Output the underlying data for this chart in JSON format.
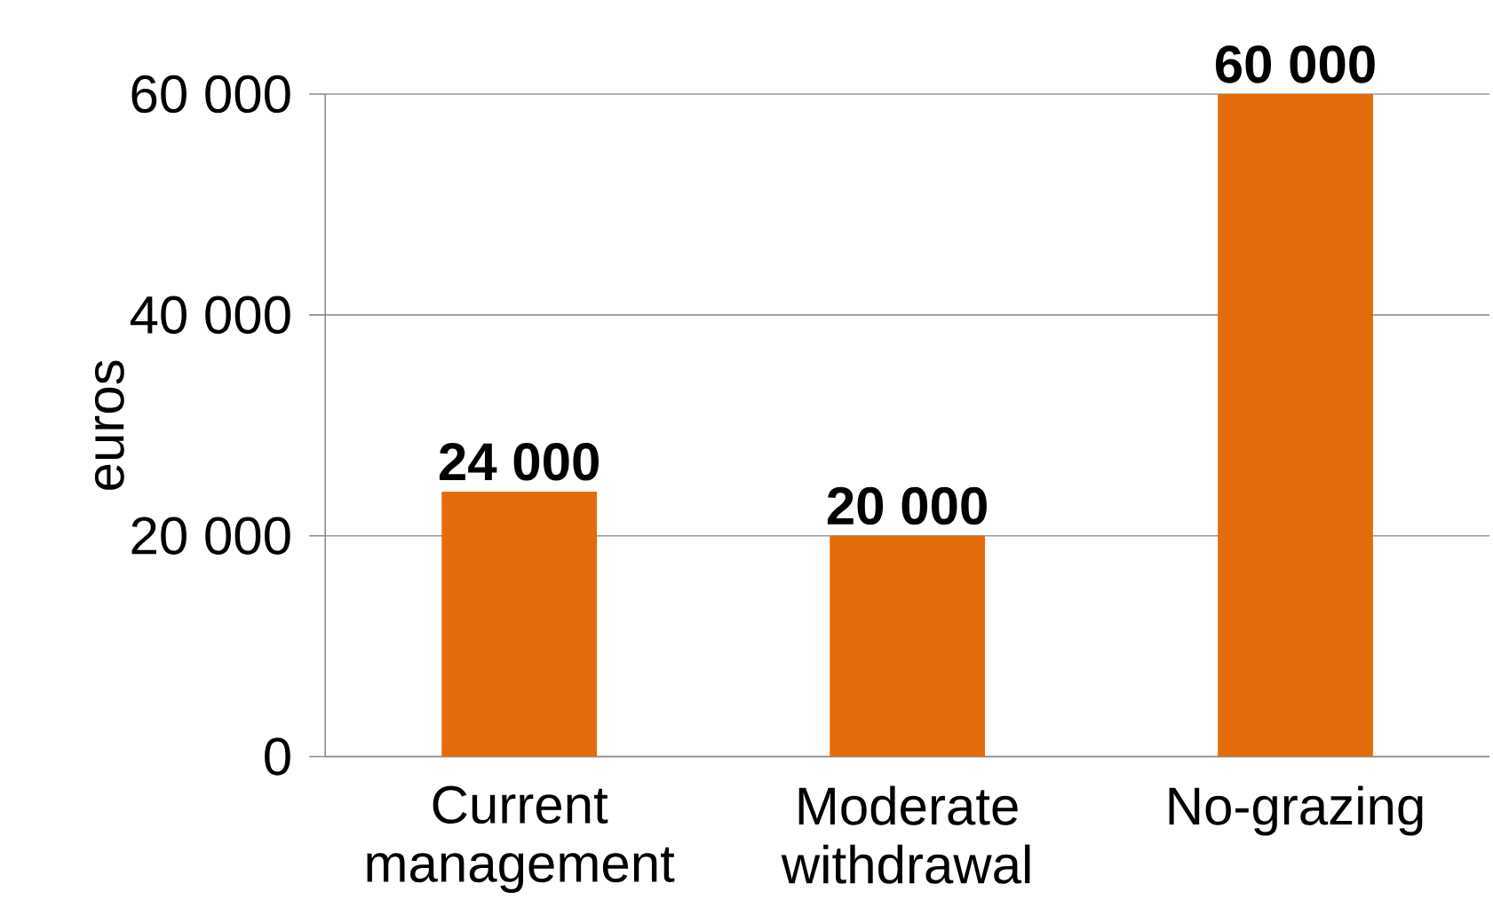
{
  "chart_data": {
    "type": "bar",
    "ylabel": "euros",
    "categories": [
      "Current management",
      "Moderate withdrawal",
      "No-grazing"
    ],
    "values": [
      24000,
      20000,
      60000
    ],
    "value_labels": [
      "24 000",
      "20 000",
      "60 000"
    ],
    "color": "#e36c0a",
    "ylim": [
      0,
      60000
    ],
    "yticks": [
      0,
      {
        "value": 20000,
        "label": "20 000"
      },
      {
        "value": 40000,
        "label": "40 000"
      },
      {
        "value": 60000,
        "label": "60 000"
      }
    ],
    "grid": "y"
  }
}
